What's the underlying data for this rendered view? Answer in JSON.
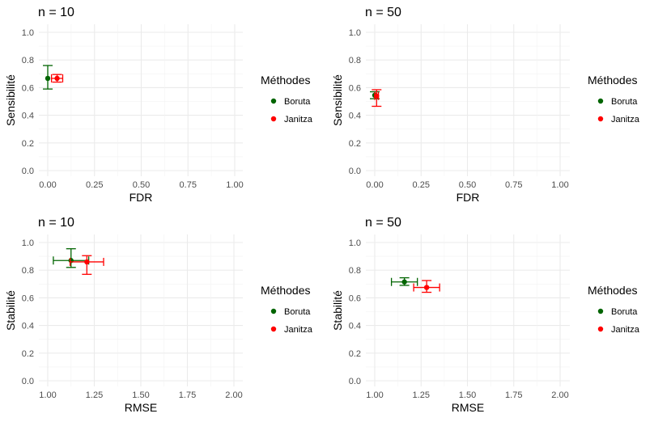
{
  "chart_data": [
    {
      "type": "scatter",
      "title": "n = 10",
      "xlabel": "FDR",
      "ylabel": "Sensibilité",
      "xlim": [
        0,
        1
      ],
      "ylim": [
        0,
        1
      ],
      "xticks": [
        "0.00",
        "0.25",
        "0.50",
        "0.75",
        "1.00"
      ],
      "yticks": [
        "0.0",
        "0.2",
        "0.4",
        "0.6",
        "0.8",
        "1.0"
      ],
      "legend_title": "Méthodes",
      "grid": true,
      "legend_position": "right",
      "series": [
        {
          "name": "Boruta",
          "color": "#006400",
          "x": 0.0,
          "y": 0.667,
          "xerr": [
            0.0,
            0.0
          ],
          "yerr": [
            0.59,
            0.76
          ]
        },
        {
          "name": "Janitza",
          "color": "#ff0000",
          "x": 0.05,
          "y": 0.667,
          "xerr": [
            0.02,
            0.08
          ],
          "yerr": [
            0.64,
            0.695
          ]
        }
      ]
    },
    {
      "type": "scatter",
      "title": "n = 50",
      "xlabel": "FDR",
      "ylabel": "Sensibilité",
      "xlim": [
        0,
        1
      ],
      "ylim": [
        0,
        1
      ],
      "xticks": [
        "0.00",
        "0.25",
        "0.50",
        "0.75",
        "1.00"
      ],
      "yticks": [
        "0.0",
        "0.2",
        "0.4",
        "0.6",
        "0.8",
        "1.0"
      ],
      "legend_title": "Méthodes",
      "grid": true,
      "legend_position": "right",
      "series": [
        {
          "name": "Boruta",
          "color": "#006400",
          "x": 0.0,
          "y": 0.545,
          "xerr": [
            0.0,
            0.0
          ],
          "yerr": [
            0.52,
            0.57
          ]
        },
        {
          "name": "Janitza",
          "color": "#ff0000",
          "x": 0.01,
          "y": 0.54,
          "xerr": [
            0.0,
            0.02
          ],
          "yerr": [
            0.465,
            0.585
          ]
        }
      ]
    },
    {
      "type": "scatter",
      "title": "n = 10",
      "xlabel": "RMSE",
      "ylabel": "Stabilité",
      "xlim": [
        1,
        2
      ],
      "ylim": [
        0,
        1
      ],
      "xticks": [
        "1.00",
        "1.25",
        "1.50",
        "1.75",
        "2.00"
      ],
      "yticks": [
        "0.0",
        "0.2",
        "0.4",
        "0.6",
        "0.8",
        "1.0"
      ],
      "legend_title": "Méthodes",
      "grid": true,
      "legend_position": "right",
      "series": [
        {
          "name": "Boruta",
          "color": "#006400",
          "x": 1.125,
          "y": 0.87,
          "xerr": [
            1.03,
            1.22
          ],
          "yerr": [
            0.82,
            0.955
          ]
        },
        {
          "name": "Janitza",
          "color": "#ff0000",
          "x": 1.21,
          "y": 0.86,
          "xerr": [
            1.12,
            1.3
          ],
          "yerr": [
            0.77,
            0.905
          ]
        }
      ]
    },
    {
      "type": "scatter",
      "title": "n = 50",
      "xlabel": "RMSE",
      "ylabel": "Stabilité",
      "xlim": [
        1,
        2
      ],
      "ylim": [
        0,
        1
      ],
      "xticks": [
        "1.00",
        "1.25",
        "1.50",
        "1.75",
        "2.00"
      ],
      "yticks": [
        "0.0",
        "0.2",
        "0.4",
        "0.6",
        "0.8",
        "1.0"
      ],
      "legend_title": "Méthodes",
      "grid": true,
      "legend_position": "right",
      "series": [
        {
          "name": "Boruta",
          "color": "#006400",
          "x": 1.16,
          "y": 0.715,
          "xerr": [
            1.09,
            1.23
          ],
          "yerr": [
            0.69,
            0.745
          ]
        },
        {
          "name": "Janitza",
          "color": "#ff0000",
          "x": 1.28,
          "y": 0.675,
          "xerr": [
            1.21,
            1.35
          ],
          "yerr": [
            0.64,
            0.725
          ]
        }
      ]
    }
  ]
}
